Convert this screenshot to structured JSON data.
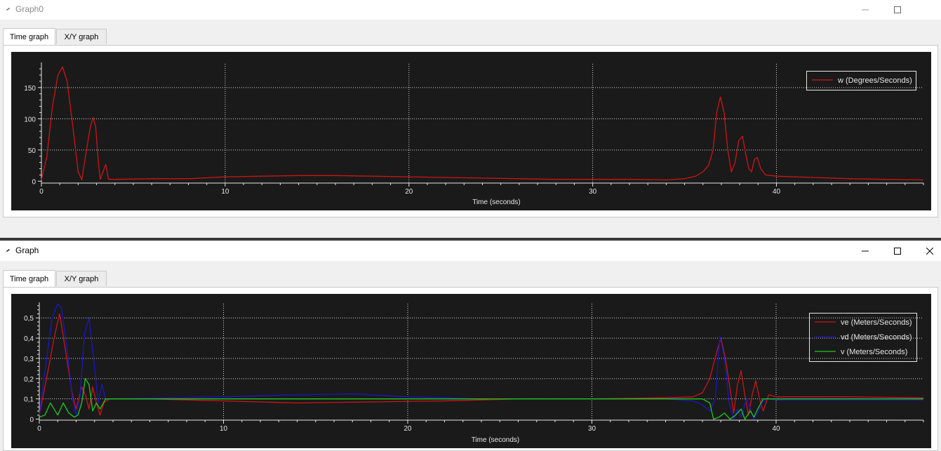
{
  "windows": [
    {
      "title": "Graph0",
      "tabs": [
        {
          "label": "Time graph"
        },
        {
          "label": "X/Y graph"
        }
      ],
      "active_tab": 0,
      "controls": {
        "minimize": "minimize-icon",
        "maximize": "maximize-icon",
        "close": "close-icon"
      },
      "chart": {
        "type": "line",
        "xlabel": "Time (seconds)",
        "xlim": [
          0,
          48
        ],
        "ylim": [
          -3,
          188
        ],
        "xticks": [
          "0",
          "10",
          "20",
          "30",
          "40"
        ],
        "xtick_values": [
          0,
          10,
          20,
          30,
          40
        ],
        "yticks": [
          "0",
          "50",
          "100",
          "150"
        ],
        "ytick_values": [
          0,
          50,
          100,
          150
        ],
        "grid": true,
        "legend": "top-right",
        "series": [
          {
            "name": "w (Degrees/Seconds)",
            "color": "#d01414",
            "x": [
              0,
              0.3,
              0.6,
              0.9,
              1.15,
              1.4,
              1.7,
              2.0,
              2.2,
              2.4,
              2.65,
              2.8,
              2.95,
              3.1,
              3.2,
              3.35,
              3.5,
              3.65,
              4,
              6,
              8,
              10,
              12,
              14,
              16,
              18,
              20,
              22,
              24,
              26,
              28,
              30,
              32,
              34,
              35,
              35.6,
              36,
              36.3,
              36.55,
              36.75,
              36.95,
              37.15,
              37.35,
              37.55,
              37.75,
              37.95,
              38.15,
              38.35,
              38.5,
              38.65,
              38.8,
              38.95,
              39.15,
              39.4,
              40,
              42,
              44,
              46,
              48
            ],
            "y": [
              2,
              40,
              120,
              170,
              183,
              160,
              90,
              15,
              2,
              40,
              85,
              102,
              88,
              30,
              3,
              15,
              27,
              3,
              3,
              4,
              4,
              7,
              8,
              9,
              9,
              8,
              7,
              6,
              5,
              4,
              3,
              3,
              3,
              2,
              4,
              8,
              15,
              25,
              50,
              110,
              135,
              110,
              50,
              15,
              30,
              65,
              72,
              40,
              20,
              15,
              35,
              38,
              20,
              10,
              8,
              6,
              4,
              3,
              2
            ]
          }
        ]
      }
    },
    {
      "title": "Graph",
      "tabs": [
        {
          "label": "Time graph"
        },
        {
          "label": "X/Y graph"
        }
      ],
      "active_tab": 0,
      "controls": {
        "minimize": "minimize-icon",
        "maximize": "maximize-icon",
        "close": "close-icon"
      },
      "chart": {
        "type": "line",
        "xlabel": "Time (seconds)",
        "xlim": [
          0,
          48
        ],
        "ylim": [
          -0.005,
          0.57
        ],
        "xticks": [
          "0",
          "10",
          "20",
          "30",
          "40"
        ],
        "xtick_values": [
          0,
          10,
          20,
          30,
          40
        ],
        "yticks": [
          "0",
          "0,1",
          "0,2",
          "0,3",
          "0,4",
          "0,5"
        ],
        "ytick_values": [
          0,
          0.1,
          0.2,
          0.3,
          0.4,
          0.5
        ],
        "grid": true,
        "legend": "top-right",
        "series": [
          {
            "name": "ve (Meters/Seconds)",
            "color": "#d01414",
            "x": [
              0,
              0.5,
              0.8,
              1.1,
              1.4,
              1.8,
              2.0,
              2.3,
              2.5,
              2.7,
              2.9,
              3.1,
              3.3,
              3.5,
              3.8,
              6,
              10,
              14,
              18,
              22,
              26,
              30,
              34,
              35.5,
              36,
              36.4,
              36.8,
              37.0,
              37.25,
              37.5,
              37.7,
              37.9,
              38.1,
              38.3,
              38.5,
              38.7,
              38.9,
              39.1,
              39.3,
              39.6,
              40,
              44,
              48
            ],
            "y": [
              0.02,
              0.25,
              0.4,
              0.52,
              0.35,
              0.12,
              0.05,
              0.16,
              0.12,
              0.05,
              0.16,
              0.08,
              0.02,
              0.08,
              0.1,
              0.1,
              0.09,
              0.08,
              0.085,
              0.09,
              0.1,
              0.1,
              0.105,
              0.11,
              0.13,
              0.2,
              0.34,
              0.4,
              0.3,
              0.15,
              0.03,
              0.17,
              0.24,
              0.12,
              0.02,
              0.12,
              0.19,
              0.1,
              0.04,
              0.12,
              0.11,
              0.11,
              0.105
            ]
          },
          {
            "name": "vd (Meters/Seconds)",
            "color": "#1818c8",
            "x": [
              0,
              0.4,
              0.7,
              1.0,
              1.2,
              1.5,
              1.8,
              2.0,
              2.2,
              2.45,
              2.7,
              2.95,
              3.2,
              3.4,
              3.6,
              4,
              10,
              14,
              17,
              20,
              24,
              30,
              34,
              35.5,
              36,
              36.4,
              36.7,
              36.95,
              37.2,
              37.45,
              37.7,
              37.9,
              38.1,
              38.4,
              38.6,
              38.8,
              39.0,
              39.3,
              39.6,
              40,
              44,
              48
            ],
            "y": [
              0.02,
              0.3,
              0.5,
              0.57,
              0.55,
              0.35,
              0.1,
              0.02,
              0.1,
              0.42,
              0.5,
              0.3,
              0.08,
              0.17,
              0.1,
              0.1,
              0.11,
              0.12,
              0.125,
              0.11,
              0.1,
              0.1,
              0.1,
              0.09,
              0.07,
              0.04,
              0.1,
              0.41,
              0.3,
              0.08,
              0,
              0.05,
              0.01,
              0.1,
              0.05,
              0,
              0.03,
              0.09,
              0.1,
              0.095,
              0.095,
              0.095
            ]
          },
          {
            "name": "v (Meters/Seconds)",
            "color": "#1ec81e",
            "x": [
              0,
              0.3,
              0.6,
              0.8,
              1.0,
              1.3,
              1.6,
              1.9,
              2.1,
              2.3,
              2.5,
              2.7,
              2.9,
              3.1,
              3.3,
              3.6,
              4,
              10,
              20,
              30,
              34,
              36,
              36.4,
              36.6,
              36.9,
              37.2,
              37.5,
              37.8,
              38.1,
              38.3,
              38.6,
              38.8,
              39.0,
              39.3,
              39.6,
              40,
              44,
              48
            ],
            "y": [
              0.01,
              0.02,
              0.08,
              0.05,
              0.02,
              0.08,
              0.03,
              0.01,
              0.02,
              0.08,
              0.2,
              0.17,
              0.04,
              0.08,
              0.05,
              0.1,
              0.1,
              0.1,
              0.1,
              0.1,
              0.1,
              0.1,
              0.08,
              0,
              0.01,
              0.03,
              0,
              0.02,
              0.05,
              0,
              0.04,
              0.01,
              0.05,
              0.1,
              0.1,
              0.1,
              0.1,
              0.1
            ]
          }
        ]
      }
    }
  ]
}
